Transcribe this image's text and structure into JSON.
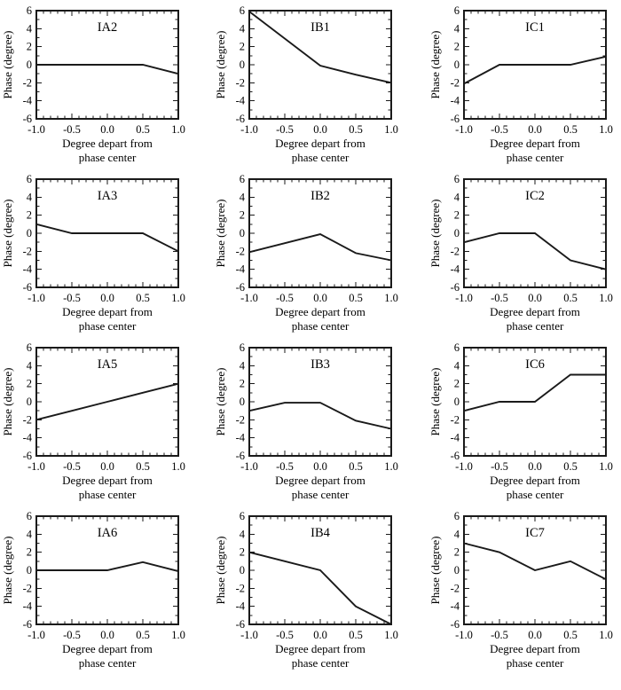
{
  "figure": {
    "background": "#ffffff",
    "text_color": "#000000",
    "panel_grid": {
      "rows": 4,
      "cols": 3
    }
  },
  "chart_data": {
    "type": "line",
    "grid": false,
    "legend_position": "none",
    "x": [
      -1.0,
      -0.5,
      0.0,
      0.5,
      1.0
    ],
    "xlabel": "Degree depart from phase center",
    "xlabel_lines": [
      "Degree depart from",
      "phase center"
    ],
    "ylabel": "Phase (degree)",
    "xlim": [
      -1.0,
      1.0
    ],
    "ylim": [
      -6,
      6
    ],
    "xtick_values": [
      -1.0,
      -0.5,
      0.0,
      0.5,
      1.0
    ],
    "xtick_labels": [
      "-1.0",
      "-0.5",
      "0.0",
      "0.5",
      "1.0"
    ],
    "ytick_values": [
      -6,
      -4,
      -2,
      0,
      2,
      4,
      6
    ],
    "ytick_labels": [
      "-6",
      "-4",
      "-2",
      "0",
      "2",
      "4",
      "6"
    ],
    "x_minor_tick_step": 0.1,
    "y_minor_tick_step": 1,
    "tick_direction": "in",
    "line_color": "#1a1a1a",
    "series": [
      {
        "name": "IA2",
        "values": [
          0,
          0,
          0,
          0,
          -1
        ]
      },
      {
        "name": "IB1",
        "values": [
          5.9,
          2.9,
          -0.1,
          -1.1,
          -2
        ]
      },
      {
        "name": "IC1",
        "values": [
          -2.1,
          0,
          0,
          0,
          0.9
        ]
      },
      {
        "name": "IA3",
        "values": [
          1,
          0,
          0,
          0,
          -2
        ]
      },
      {
        "name": "IB2",
        "values": [
          -2.1,
          -1.1,
          -0.1,
          -2.2,
          -3
        ]
      },
      {
        "name": "IC2",
        "values": [
          -1,
          0,
          0,
          -3,
          -4
        ]
      },
      {
        "name": "IA5",
        "values": [
          -2,
          -1,
          0,
          1,
          2
        ]
      },
      {
        "name": "IB3",
        "values": [
          -1,
          -0.1,
          -0.1,
          -2.1,
          -3
        ]
      },
      {
        "name": "IC6",
        "values": [
          -1,
          0,
          0,
          3,
          3
        ]
      },
      {
        "name": "IA6",
        "values": [
          0,
          0,
          0,
          0.9,
          -0.1
        ]
      },
      {
        "name": "IB4",
        "values": [
          2,
          1,
          0,
          -4,
          -6
        ]
      },
      {
        "name": "IC7",
        "values": [
          3,
          2,
          0,
          1,
          -1
        ]
      }
    ]
  }
}
